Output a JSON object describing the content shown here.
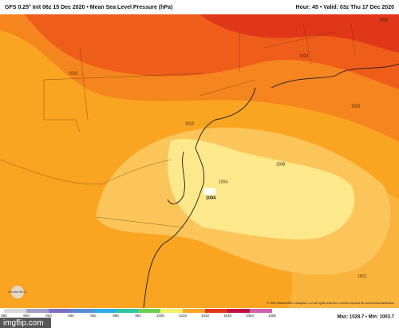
{
  "header": {
    "title": "GFS 0.25° Init 06z 15 Dec 2020 • Mean Sea Level Pressure (hPa)",
    "valid": "Hour: 45 • Valid: 03z Thu 17 Dec 2020"
  },
  "map": {
    "contour_labels": [
      "1028",
      "1024",
      "1020",
      "1016",
      "1012",
      "1008",
      "1004",
      "1012"
    ],
    "low_center": "1004",
    "copyright": "© 2020 WeatherBELL Analytics, LLC All rights reserved. License required for commercial distribution",
    "logo": "WeatherBELL"
  },
  "footer": {
    "extremes": "Max: 1028.7 • Min: 1003.7",
    "colorbar_labels": [
      "880",
      "900",
      "920",
      "936",
      "952",
      "968",
      "984",
      "1000",
      "1016",
      "1032",
      "1048",
      "1064",
      "1080"
    ]
  },
  "watermark": "imgflip.com"
}
